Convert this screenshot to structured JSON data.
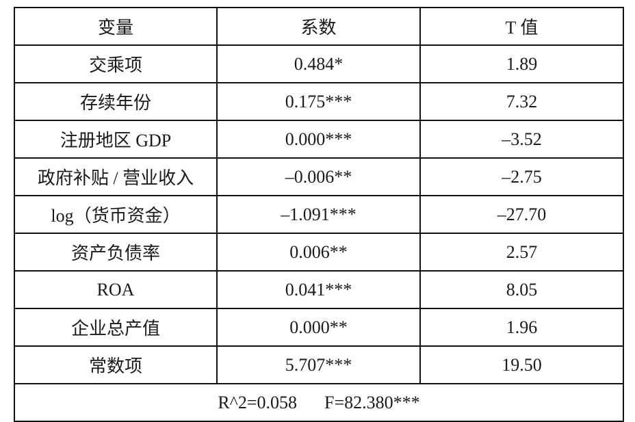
{
  "table": {
    "header": [
      "变量",
      "系数",
      "T 值"
    ],
    "rows": [
      [
        "交乘项",
        "0.484*",
        "1.89"
      ],
      [
        "存续年份",
        "0.175***",
        "7.32"
      ],
      [
        "注册地区 GDP",
        "0.000***",
        "–3.52"
      ],
      [
        "政府补贴 / 营业收入",
        "–0.006**",
        "–2.75"
      ],
      [
        "log（货币资金）",
        "–1.091***",
        "–27.70"
      ],
      [
        "资产负债率",
        "0.006**",
        "2.57"
      ],
      [
        "ROA",
        "0.041***",
        "8.05"
      ],
      [
        "企业总产值",
        "0.000**",
        "1.96"
      ],
      [
        "常数项",
        "5.707***",
        "19.50"
      ]
    ],
    "footer": [
      "R^2=0.058",
      "F=82.380***"
    ]
  }
}
